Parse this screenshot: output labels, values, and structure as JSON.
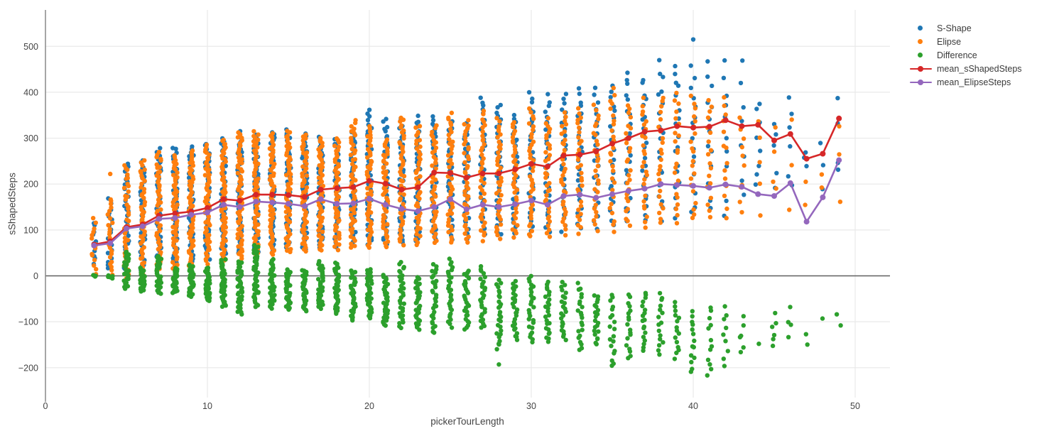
{
  "chart_data": {
    "type": "scatter",
    "title": "",
    "xlabel": "pickerTourLength",
    "ylabel": "sShapedSteps",
    "x_ticks": [
      0,
      10,
      20,
      30,
      40,
      50
    ],
    "y_ticks": [
      500,
      400,
      300,
      200,
      100,
      0,
      -100,
      -200
    ],
    "xlim": [
      0,
      52.2
    ],
    "ylim": [
      -268,
      580
    ],
    "grid": true,
    "zeroline": true,
    "legend_position": "top-right",
    "background": "#ffffff",
    "grid_color": "#e9e9e9",
    "zeroline_color": "#606060",
    "axisline_color": "#888888",
    "tick_color": "#444444",
    "x_start": 3,
    "scatter_series": [
      {
        "name": "S-Shape",
        "color": "#1f77b4",
        "ranges": [
          [
            20,
            125
          ],
          [
            10,
            170
          ],
          [
            0,
            250
          ],
          [
            10,
            256
          ],
          [
            25,
            279
          ],
          [
            20,
            284
          ],
          [
            30,
            285
          ],
          [
            35,
            292
          ],
          [
            40,
            300
          ],
          [
            45,
            317
          ],
          [
            50,
            310
          ],
          [
            50,
            315
          ],
          [
            55,
            320
          ],
          [
            55,
            312
          ],
          [
            60,
            306
          ],
          [
            60,
            303
          ],
          [
            65,
            316
          ],
          [
            65,
            363
          ],
          [
            68,
            344
          ],
          [
            70,
            347
          ],
          [
            72,
            350
          ],
          [
            75,
            354
          ],
          [
            78,
            341
          ],
          [
            80,
            337
          ],
          [
            82,
            395
          ],
          [
            85,
            381
          ],
          [
            88,
            358
          ],
          [
            90,
            403
          ],
          [
            92,
            398
          ],
          [
            95,
            407
          ],
          [
            98,
            411
          ],
          [
            100,
            414
          ],
          [
            105,
            425
          ],
          [
            110,
            453
          ],
          [
            112,
            438
          ],
          [
            115,
            476
          ],
          [
            118,
            476
          ],
          [
            120,
            474
          ],
          [
            125,
            475
          ],
          [
            130,
            476
          ],
          [
            150,
            475
          ],
          [
            160,
            395
          ],
          [
            180,
            360
          ],
          [
            175,
            426
          ],
          [
            235,
            273
          ],
          [
            180,
            300
          ],
          [
            190,
            401
          ]
        ],
        "counts": [
          10,
          18,
          30,
          36,
          40,
          44,
          44,
          46,
          48,
          50,
          50,
          48,
          46,
          45,
          44,
          43,
          42,
          42,
          40,
          38,
          37,
          35,
          35,
          34,
          32,
          32,
          30,
          30,
          29,
          27,
          26,
          24,
          22,
          21,
          21,
          19,
          18,
          16,
          14,
          11,
          8,
          9,
          5,
          6,
          3,
          3,
          4
        ]
      },
      {
        "name": "Elipse",
        "color": "#ff7f0e",
        "ranges": [
          [
            0,
            130
          ],
          [
            0,
            172
          ],
          [
            -15,
            245
          ],
          [
            0,
            253
          ],
          [
            15,
            273
          ],
          [
            10,
            265
          ],
          [
            20,
            275
          ],
          [
            25,
            288
          ],
          [
            30,
            300
          ],
          [
            35,
            315
          ],
          [
            45,
            316
          ],
          [
            45,
            311
          ],
          [
            48,
            318
          ],
          [
            50,
            310
          ],
          [
            52,
            304
          ],
          [
            55,
            301
          ],
          [
            58,
            340
          ],
          [
            60,
            327
          ],
          [
            60,
            298
          ],
          [
            65,
            350
          ],
          [
            65,
            330
          ],
          [
            68,
            330
          ],
          [
            70,
            356
          ],
          [
            72,
            341
          ],
          [
            75,
            361
          ],
          [
            78,
            345
          ],
          [
            80,
            340
          ],
          [
            82,
            366
          ],
          [
            85,
            345
          ],
          [
            88,
            360
          ],
          [
            90,
            370
          ],
          [
            95,
            375
          ],
          [
            95,
            414
          ],
          [
            100,
            380
          ],
          [
            105,
            390
          ],
          [
            105,
            395
          ],
          [
            110,
            405
          ],
          [
            115,
            402
          ],
          [
            118,
            397
          ],
          [
            120,
            403
          ],
          [
            125,
            363
          ],
          [
            130,
            352
          ],
          [
            150,
            345
          ],
          [
            125,
            349
          ],
          [
            145,
            230
          ],
          [
            165,
            265
          ],
          [
            158,
            350
          ]
        ],
        "counts": [
          14,
          24,
          40,
          46,
          50,
          55,
          55,
          58,
          60,
          62,
          62,
          60,
          58,
          56,
          55,
          54,
          52,
          52,
          50,
          48,
          46,
          44,
          44,
          42,
          40,
          40,
          38,
          38,
          36,
          34,
          32,
          30,
          28,
          26,
          26,
          24,
          22,
          20,
          18,
          14,
          10,
          5,
          4,
          3,
          2,
          2,
          3
        ]
      },
      {
        "name": "Difference",
        "color": "#2ca02c",
        "ranges": [
          [
            -2,
            2
          ],
          [
            -6,
            2
          ],
          [
            -30,
            55
          ],
          [
            -35,
            18
          ],
          [
            -40,
            45
          ],
          [
            -38,
            17
          ],
          [
            -47,
            26
          ],
          [
            -55,
            19
          ],
          [
            -68,
            38
          ],
          [
            -84,
            33
          ],
          [
            -69,
            68
          ],
          [
            -72,
            38
          ],
          [
            -75,
            14
          ],
          [
            -77,
            14
          ],
          [
            -72,
            33
          ],
          [
            -83,
            30
          ],
          [
            -98,
            14
          ],
          [
            -93,
            17
          ],
          [
            -111,
            4
          ],
          [
            -116,
            33
          ],
          [
            -119,
            -2
          ],
          [
            -127,
            29
          ],
          [
            -113,
            38
          ],
          [
            -118,
            15
          ],
          [
            -117,
            22
          ],
          [
            -160,
            -5
          ],
          [
            -142,
            -8
          ],
          [
            -147,
            3
          ],
          [
            -147,
            -10
          ],
          [
            -142,
            -12
          ],
          [
            -166,
            -15
          ],
          [
            -153,
            -39
          ],
          [
            -203,
            -34
          ],
          [
            -185,
            -36
          ],
          [
            -164,
            -30
          ],
          [
            -175,
            -32
          ],
          [
            -182,
            -55
          ],
          [
            -214,
            -75
          ],
          [
            -227,
            -55
          ],
          [
            -200,
            -60
          ],
          [
            -177,
            -86
          ],
          [
            -148,
            -148
          ],
          [
            -165,
            -78
          ],
          [
            -143,
            -60
          ],
          [
            -150,
            -120
          ],
          [
            -93,
            -93
          ],
          [
            -130,
            -49
          ]
        ],
        "counts": [
          3,
          5,
          25,
          30,
          34,
          36,
          36,
          38,
          40,
          42,
          42,
          40,
          39,
          38,
          37,
          36,
          35,
          35,
          34,
          32,
          31,
          30,
          30,
          29,
          27,
          27,
          26,
          26,
          25,
          23,
          22,
          21,
          19,
          18,
          18,
          16,
          15,
          14,
          12,
          9,
          6,
          1,
          6,
          4,
          2,
          1,
          2
        ]
      }
    ],
    "outliers": [
      {
        "series": 0,
        "x": 40,
        "value": 515
      },
      {
        "series": 1,
        "x": 4,
        "value": 222
      },
      {
        "series": 2,
        "x": 28,
        "value": -193
      }
    ],
    "line_series": [
      {
        "name": "mean_sShapedSteps",
        "color": "#d62728",
        "values": [
          68,
          75,
          106,
          112,
          131,
          136,
          140,
          148,
          167,
          164,
          177,
          177,
          176,
          172,
          188,
          191,
          193,
          207,
          201,
          188,
          193,
          225,
          224,
          214,
          223,
          223,
          232,
          244,
          238,
          262,
          264,
          271,
          288,
          300,
          314,
          317,
          326,
          323,
          325,
          339,
          326,
          329,
          295,
          309,
          255,
          266,
          343
        ]
      },
      {
        "name": "mean_ElipseSteps",
        "color": "#9467bd",
        "values": [
          66,
          71,
          103,
          108,
          124,
          126,
          133,
          138,
          155,
          150,
          162,
          160,
          157,
          152,
          167,
          157,
          158,
          168,
          155,
          146,
          141,
          150,
          167,
          145,
          155,
          150,
          156,
          164,
          155,
          174,
          177,
          170,
          178,
          185,
          190,
          200,
          198,
          196,
          192,
          199,
          194,
          178,
          174,
          202,
          118,
          171,
          252
        ]
      }
    ]
  }
}
